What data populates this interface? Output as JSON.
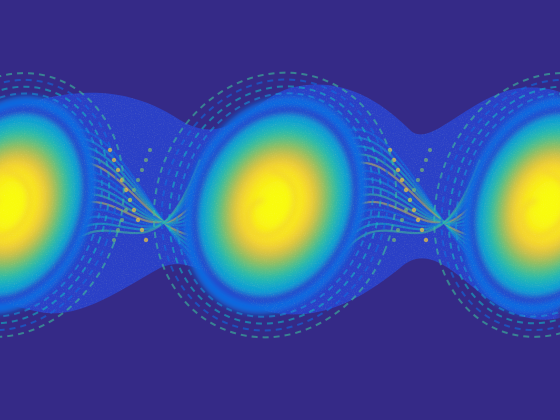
{
  "image": {
    "subject": "vortex-street-density-field",
    "colormap": "parula",
    "palette": {
      "background": "#352a87",
      "deep_blue": "#2c3fc7",
      "blue": "#0f6be0",
      "light_blue": "#1494d9",
      "cyan": "#11b4c4",
      "teal": "#3cbf9b",
      "green": "#7ebf6c",
      "olive": "#c2bd4e",
      "orange": "#f2c83a",
      "yellow": "#f9e81f",
      "bright_yellow": "#f9fb0e"
    },
    "vortex_count": 3
  }
}
